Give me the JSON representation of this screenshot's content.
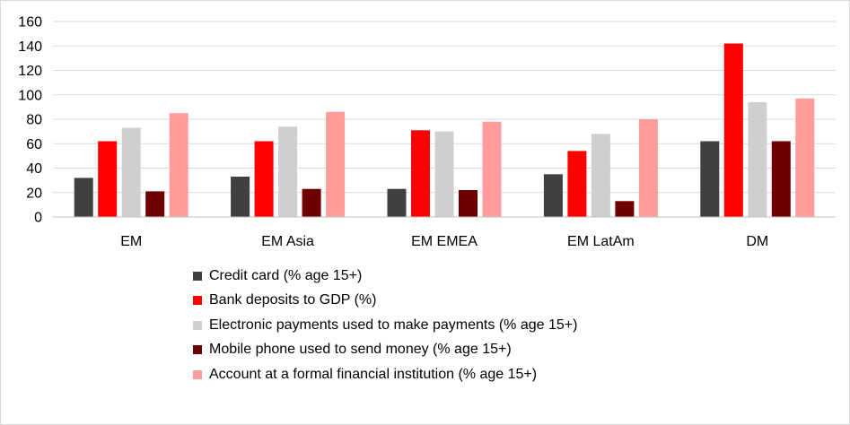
{
  "chart_data": {
    "type": "bar",
    "title": "",
    "xlabel": "",
    "ylabel": "",
    "ylim": [
      0,
      160
    ],
    "yticks": [
      0,
      20,
      40,
      60,
      80,
      100,
      120,
      140,
      160
    ],
    "grid": true,
    "legend_position": "bottom",
    "categories": [
      "EM",
      "EM Asia",
      "EM EMEA",
      "EM LatAm",
      "DM"
    ],
    "series": [
      {
        "name": "Credit card (% age 15+)",
        "color": "#404040",
        "values": [
          32,
          33,
          23,
          35,
          62
        ]
      },
      {
        "name": "Bank deposits to GDP (%)",
        "color": "#ff0000",
        "values": [
          62,
          62,
          71,
          54,
          142
        ]
      },
      {
        "name": "Electronic payments used to make payments (% age 15+)",
        "color": "#d0cece",
        "values": [
          73,
          74,
          70,
          68,
          94
        ]
      },
      {
        "name": "Mobile phone used to send money (% age 15+)",
        "color": "#6e0000",
        "values": [
          21,
          23,
          22,
          13,
          62
        ]
      },
      {
        "name": "Account at a formal financial institution (% age 15+)",
        "color": "#ff9c9c",
        "values": [
          85,
          86,
          78,
          80,
          97
        ]
      }
    ]
  }
}
